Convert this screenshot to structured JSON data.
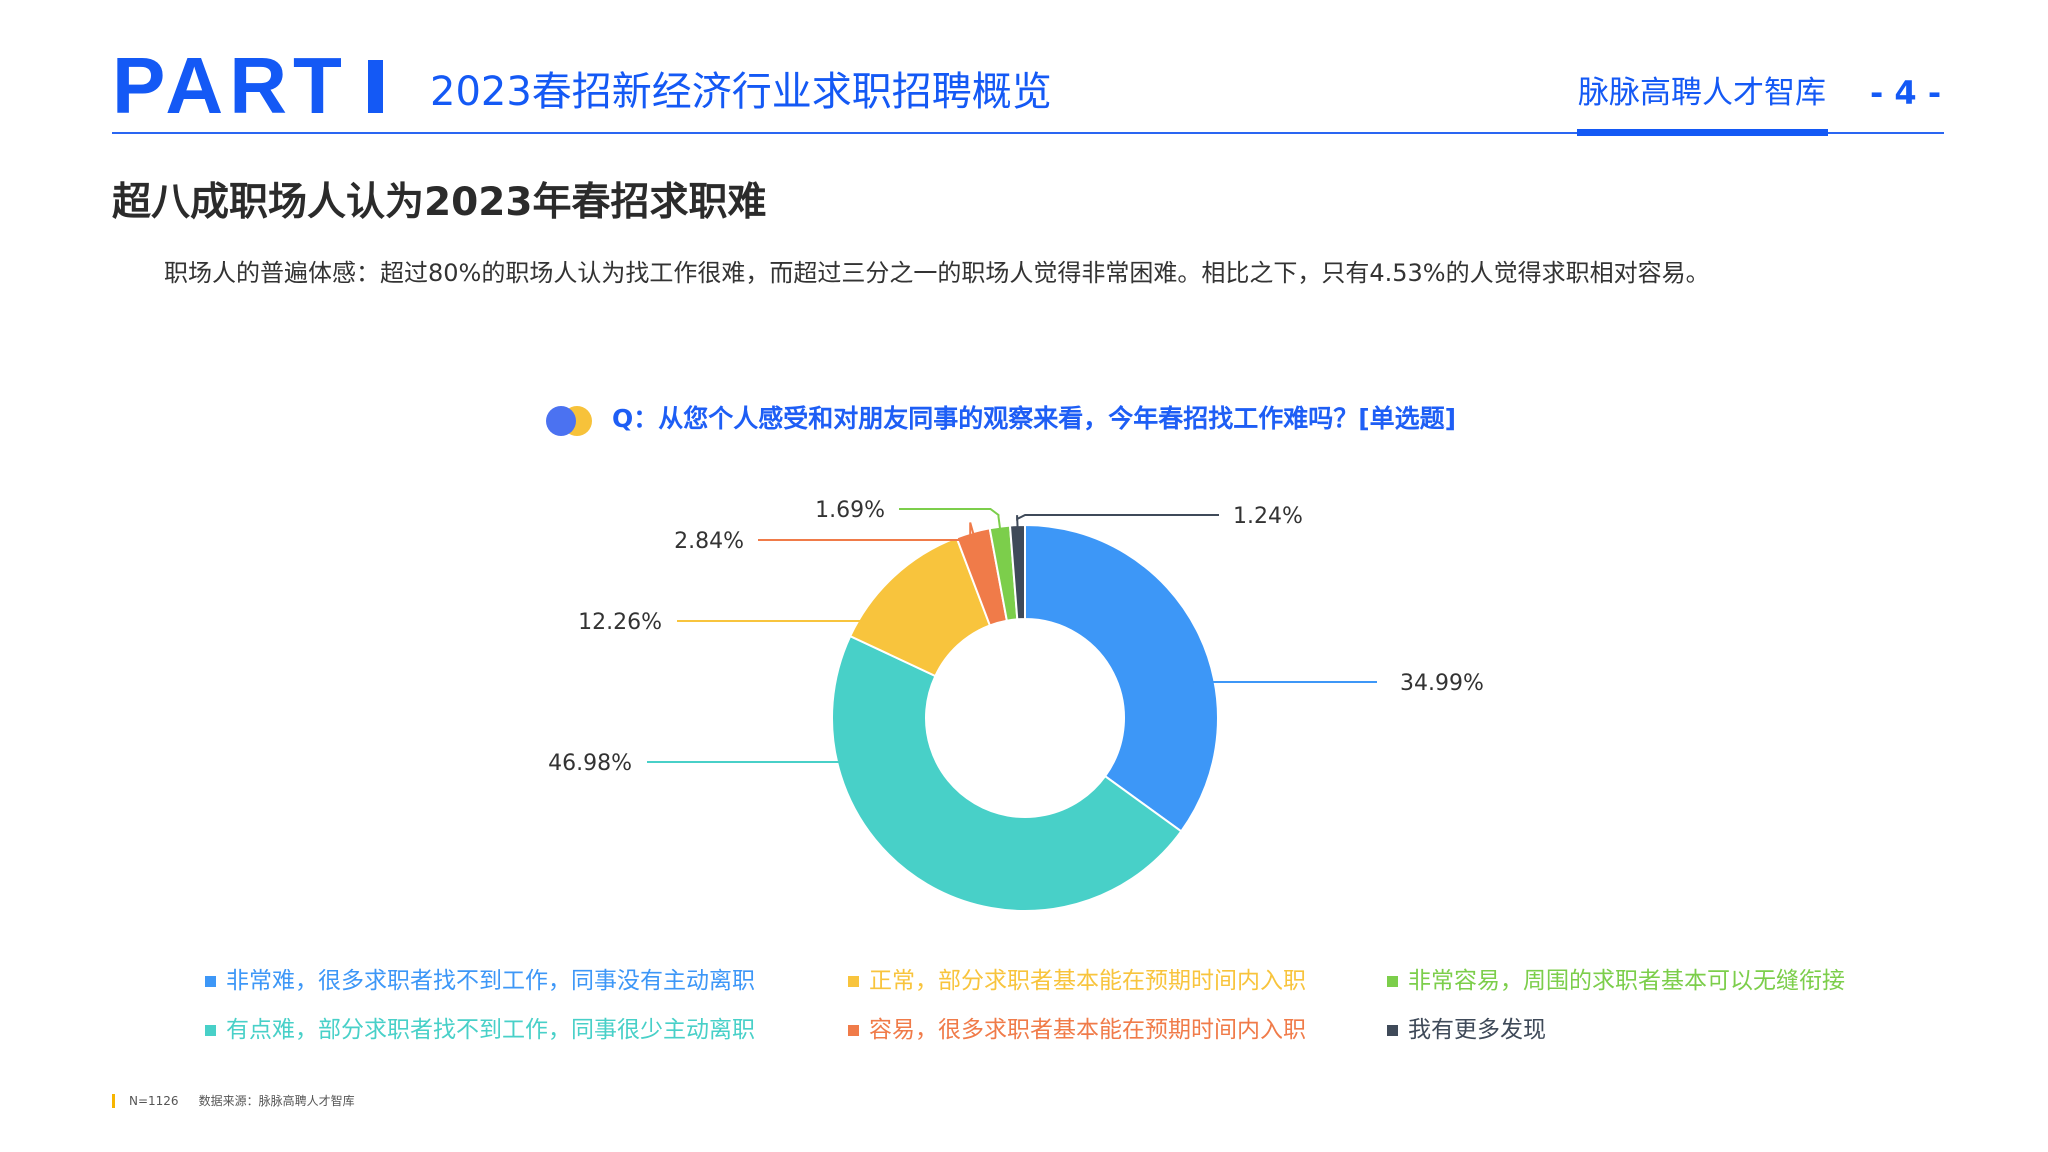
{
  "header": {
    "part_label": "PART",
    "title": "2023春招新经济行业求职招聘概览",
    "brand": "脉脉高聘人才智库",
    "page_number": "- 4 -",
    "accent_color": "#1459f5"
  },
  "slide": {
    "title": "超八成职场人认为2023年春招求职难",
    "description": "职场人的普遍体感：超过80%的职场人认为找工作很难，而超过三分之一的职场人觉得非常困难。相比之下，只有4.53%的人觉得求职相对容易。"
  },
  "chart_data": {
    "type": "pie",
    "variant": "donut",
    "title": "Q：从您个人感受和对朋友同事的观察来看，今年春招找工作难吗？[单选题]",
    "legend_placement": "bottom",
    "slices": [
      {
        "label": "非常难，很多求职者找不到工作，同事没有主动离职",
        "value": 34.99,
        "value_label": "34.99%",
        "color": "#3d97f7"
      },
      {
        "label": "有点难，部分求职者找不到工作，同事很少主动离职",
        "value": 46.98,
        "value_label": "46.98%",
        "color": "#48d0c8"
      },
      {
        "label": "正常，部分求职者基本能在预期时间内入职",
        "value": 12.26,
        "value_label": "12.26%",
        "color": "#f8c43d"
      },
      {
        "label": "容易，很多求职者基本能在预期时间内入职",
        "value": 2.84,
        "value_label": "2.84%",
        "color": "#f07b49"
      },
      {
        "label": "非常容易，周围的求职者基本可以无缝衔接",
        "value": 1.69,
        "value_label": "1.69%",
        "color": "#7cce4b"
      },
      {
        "label": "我有更多发现",
        "value": 1.24,
        "value_label": "1.24%",
        "color": "#3f4a59"
      }
    ]
  },
  "footer": {
    "sample": "N=1126",
    "source": "数据来源：脉脉高聘人才智库"
  }
}
